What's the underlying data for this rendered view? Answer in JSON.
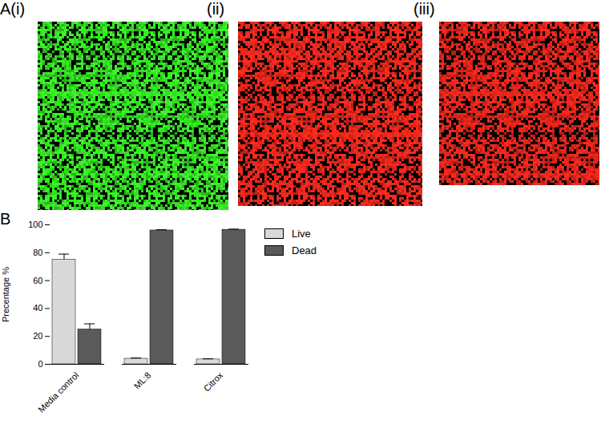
{
  "panels": [
    {
      "label": "A(i)",
      "color": "#33dd22"
    },
    {
      "label": "(ii)",
      "color": "#e8261b"
    },
    {
      "label": "(iii)",
      "color": "#e0241a"
    }
  ],
  "chart_data": {
    "type": "bar",
    "title": "B",
    "categories": [
      "Media control",
      "ML:8",
      "Citrox"
    ],
    "series": [
      {
        "name": "Live",
        "color": "#d9d9d9",
        "values": [
          75,
          4,
          3.5
        ],
        "errors": [
          4,
          0.5,
          0.4
        ]
      },
      {
        "name": "Dead",
        "color": "#5a5a5a",
        "values": [
          25,
          96,
          96.5
        ],
        "errors": [
          4,
          0.5,
          0.4
        ]
      }
    ],
    "y_label": "Precentage %",
    "ylim": [
      0,
      100
    ],
    "yticks": [
      0,
      20,
      40,
      60,
      80,
      100
    ],
    "grid": false,
    "legend": "right"
  }
}
